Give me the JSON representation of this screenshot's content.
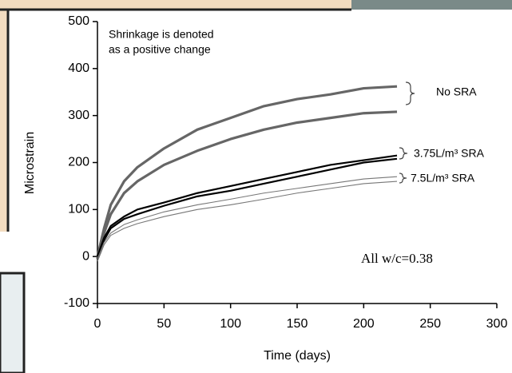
{
  "chart_data": {
    "type": "line",
    "xlabel": "Time (days)",
    "ylabel": "Microstrain",
    "xlim": [
      0,
      300
    ],
    "xticks": [
      0,
      50,
      100,
      150,
      200,
      250,
      300
    ],
    "ylim": [
      -100,
      500
    ],
    "yticks": [
      -100,
      0,
      100,
      200,
      300,
      400,
      500
    ],
    "grid": false,
    "x": [
      0,
      5,
      10,
      20,
      30,
      50,
      75,
      100,
      125,
      150,
      175,
      200,
      225
    ],
    "series": [
      {
        "color": "#666666",
        "width": 3.2,
        "values": [
          0,
          60,
          110,
          160,
          190,
          230,
          270,
          295,
          320,
          335,
          345,
          358,
          362
        ]
      },
      {
        "color": "#666666",
        "width": 3.2,
        "values": [
          -5,
          50,
          90,
          135,
          160,
          195,
          225,
          250,
          270,
          285,
          295,
          305,
          308
        ]
      },
      {
        "color": "#000000",
        "width": 2.2,
        "values": [
          0,
          40,
          65,
          85,
          100,
          115,
          135,
          150,
          165,
          180,
          195,
          205,
          215
        ]
      },
      {
        "color": "#000000",
        "width": 2.2,
        "values": [
          -5,
          35,
          60,
          80,
          90,
          108,
          128,
          140,
          155,
          170,
          185,
          200,
          208
        ]
      },
      {
        "color": "#777777",
        "width": 1.1,
        "values": [
          -5,
          30,
          50,
          68,
          78,
          95,
          110,
          122,
          135,
          145,
          155,
          165,
          170
        ]
      },
      {
        "color": "#777777",
        "width": 1.1,
        "values": [
          -10,
          25,
          45,
          60,
          70,
          85,
          100,
          110,
          122,
          135,
          145,
          155,
          160
        ]
      }
    ],
    "note": [
      "Shrinkage is denoted",
      "as a positive change"
    ],
    "groups": [
      "No SRA",
      "3.75L/m³ SRA",
      "7.5L/m³ SRA"
    ],
    "annotation": "All w/c=0.38"
  }
}
